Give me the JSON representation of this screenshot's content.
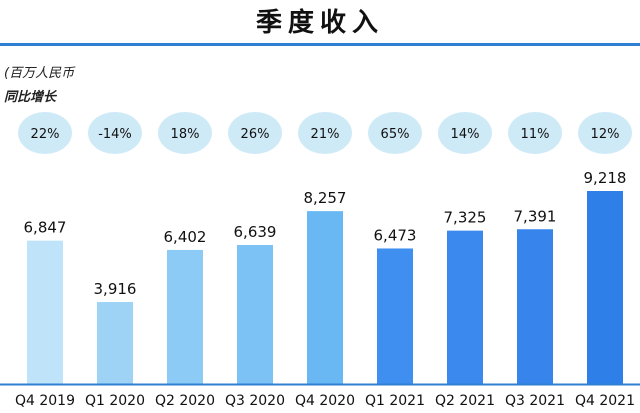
{
  "header": {
    "title": "季度收入",
    "unit": "(百万人民币",
    "yoy_label": "同比增长"
  },
  "colors": {
    "rule": "#2f7fd3",
    "bubble": "#cfeaf7",
    "axis": "#2f7fd3",
    "bars": [
      "#bfe3f8",
      "#9fd3f5",
      "#8ccbf5",
      "#7cc2f4",
      "#6ab8f3",
      "#3f8ff0",
      "#3b88ee",
      "#3684ec",
      "#2f7fe9"
    ]
  },
  "chart_data": {
    "type": "bar",
    "categories": [
      "Q4 2019",
      "Q1 2020",
      "Q2 2020",
      "Q3 2020",
      "Q4 2020",
      "Q1 2021",
      "Q2 2021",
      "Q3 2021",
      "Q4 2021"
    ],
    "values": [
      6847,
      3916,
      6402,
      6639,
      8257,
      6473,
      7325,
      7391,
      9218
    ],
    "value_labels": [
      "6,847",
      "3,916",
      "6,402",
      "6,639",
      "8,257",
      "6,473",
      "7,325",
      "7,391",
      "9,218"
    ],
    "yoy_growth": [
      "22%",
      "-14%",
      "18%",
      "26%",
      "21%",
      "65%",
      "14%",
      "11%",
      "12%"
    ],
    "title": "季度收入",
    "ylabel": "(百万人民币",
    "ylim": [
      0,
      9218
    ],
    "grid": false,
    "legend": "none"
  }
}
